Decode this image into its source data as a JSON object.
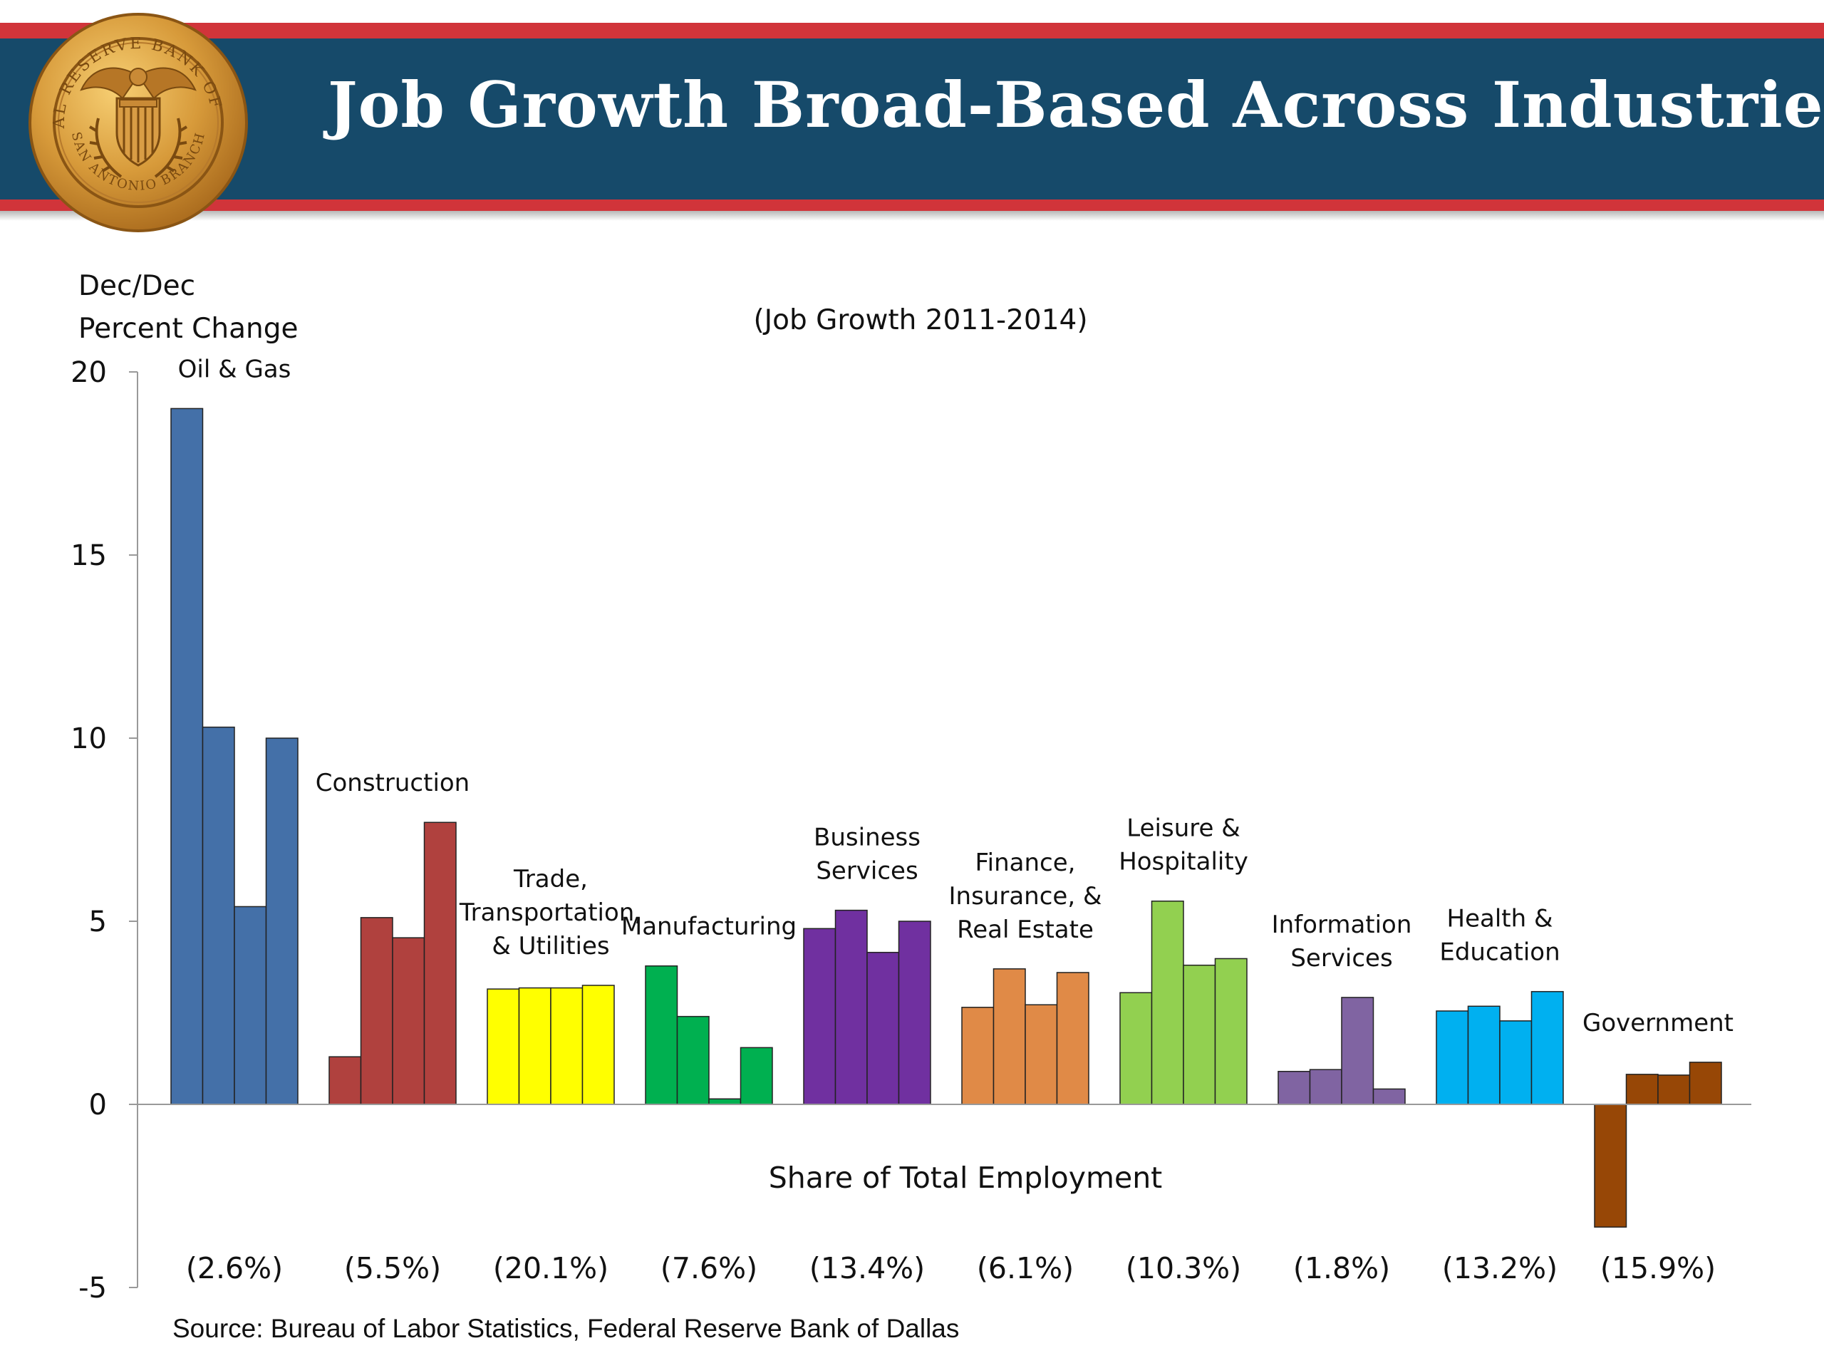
{
  "title": "Job Growth Broad-Based Across Industries",
  "seal_text": [
    "FEDERAL RESERVE BANK OF DALLAS",
    "SAN ANTONIO BRANCH"
  ],
  "source": "Source: Bureau of Labor Statistics, Federal Reserve Bank of Dallas",
  "colors": {
    "header_band": "#164a6a",
    "header_stripe": "#d1343a"
  },
  "chart_data": {
    "type": "bar",
    "title": "",
    "subtitle": "(Job Growth 2011-2014)",
    "ylabel": [
      "Dec/Dec",
      "Percent Change"
    ],
    "xlabel": "Share of Total Employment",
    "ylim": [
      -5,
      20
    ],
    "yticks": [
      "20",
      "15",
      "10",
      "5",
      "0",
      "-5"
    ],
    "ytick_values": [
      20,
      15,
      10,
      5,
      0,
      -5
    ],
    "bars_per_group": 4,
    "groups": [
      {
        "label": [
          "Oil & Gas"
        ],
        "share": "(2.6%)",
        "color": "#4470a8",
        "values": [
          19.0,
          10.3,
          5.4,
          10.0
        ]
      },
      {
        "label": [
          "Construction"
        ],
        "share": "(5.5%)",
        "color": "#b0413e",
        "values": [
          1.3,
          5.1,
          4.55,
          7.7
        ]
      },
      {
        "label": [
          "Trade,",
          "Transportation,",
          "& Utilities"
        ],
        "share": "(20.1%)",
        "color": "#ffff00",
        "values": [
          3.15,
          3.18,
          3.18,
          3.25
        ]
      },
      {
        "label": [
          "Manufacturing"
        ],
        "share": "(7.6%)",
        "color": "#00b050",
        "values": [
          3.78,
          2.4,
          0.15,
          1.55
        ]
      },
      {
        "label": [
          "Business",
          "Services"
        ],
        "share": "(13.4%)",
        "color": "#7030a0",
        "values": [
          4.8,
          5.3,
          4.15,
          5.0
        ]
      },
      {
        "label": [
          "Finance,",
          "Insurance, &",
          "Real Estate"
        ],
        "share": "(6.1%)",
        "color": "#e08a47",
        "values": [
          2.65,
          3.7,
          2.72,
          3.6
        ]
      },
      {
        "label": [
          "Leisure &",
          "Hospitality"
        ],
        "share": "(10.3%)",
        "color": "#92d050",
        "values": [
          3.05,
          5.55,
          3.8,
          3.98
        ]
      },
      {
        "label": [
          "Information",
          "Services"
        ],
        "share": "(1.8%)",
        "color": "#8064a2",
        "values": [
          0.9,
          0.95,
          2.92,
          0.42
        ]
      },
      {
        "label": [
          "Health &",
          "Education"
        ],
        "share": "(13.2%)",
        "color": "#00b0f0",
        "values": [
          2.55,
          2.68,
          2.28,
          3.08
        ]
      },
      {
        "label": [
          "Government"
        ],
        "share": "(15.9%)",
        "color": "#974706",
        "values": [
          -3.35,
          0.82,
          0.8,
          1.15
        ]
      }
    ]
  }
}
